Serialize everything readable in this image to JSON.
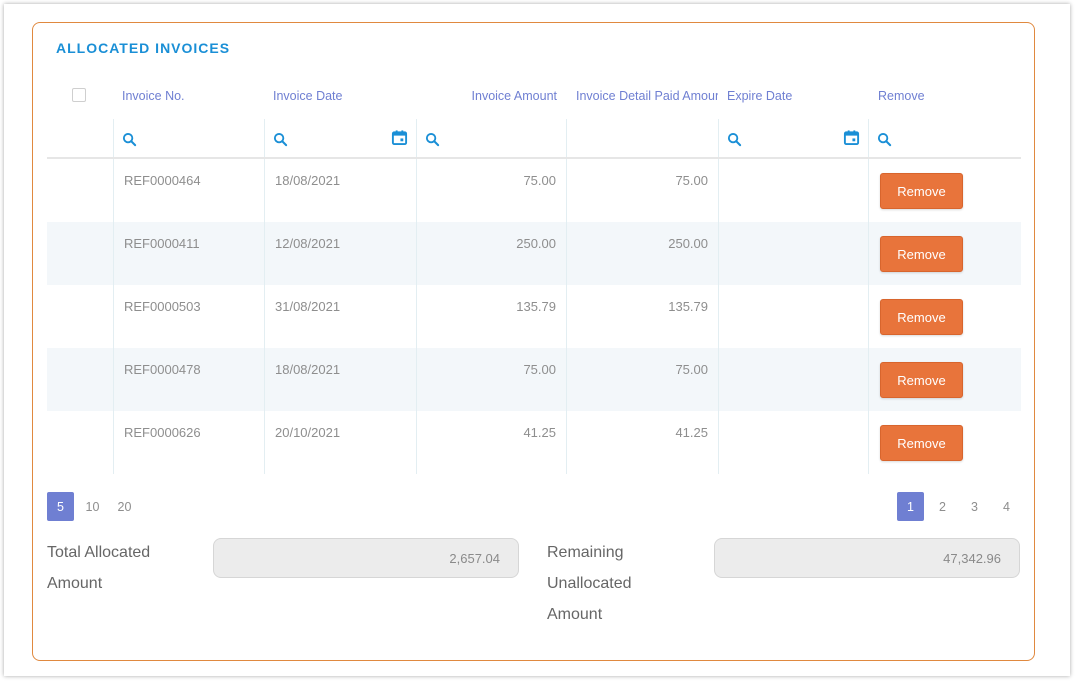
{
  "panel": {
    "title": "ALLOCATED INVOICES"
  },
  "columns": {
    "invoice_no": "Invoice No.",
    "invoice_date": "Invoice Date",
    "invoice_amount": "Invoice Amount",
    "paid_amount": "Invoice Detail Paid Amount",
    "expire_date": "Expire Date",
    "remove": "Remove"
  },
  "icons": {
    "filter": "search-icon",
    "date_picker": "calendar-icon",
    "accent_color": "#1a8fd6",
    "button_color": "#e8743b"
  },
  "rows": [
    {
      "invoice_no": "REF0000464",
      "invoice_date": "18/08/2021",
      "invoice_amount": "75.00",
      "paid_amount": "75.00",
      "expire_date": "",
      "remove_label": "Remove"
    },
    {
      "invoice_no": "REF0000411",
      "invoice_date": "12/08/2021",
      "invoice_amount": "250.00",
      "paid_amount": "250.00",
      "expire_date": "",
      "remove_label": "Remove"
    },
    {
      "invoice_no": "REF0000503",
      "invoice_date": "31/08/2021",
      "invoice_amount": "135.79",
      "paid_amount": "135.79",
      "expire_date": "",
      "remove_label": "Remove"
    },
    {
      "invoice_no": "REF0000478",
      "invoice_date": "18/08/2021",
      "invoice_amount": "75.00",
      "paid_amount": "75.00",
      "expire_date": "",
      "remove_label": "Remove"
    },
    {
      "invoice_no": "REF0000626",
      "invoice_date": "20/10/2021",
      "invoice_amount": "41.25",
      "paid_amount": "41.25",
      "expire_date": "",
      "remove_label": "Remove"
    }
  ],
  "pager": {
    "page_sizes": [
      "5",
      "10",
      "20"
    ],
    "selected_page_size": "5",
    "pages": [
      "1",
      "2",
      "3",
      "4"
    ],
    "current_page": "1"
  },
  "summary": {
    "total_label": "Total Allocated Amount",
    "total_value": "2,657.04",
    "remaining_label": "Remaining Unallocated Amount",
    "remaining_value": "47,342.96"
  }
}
